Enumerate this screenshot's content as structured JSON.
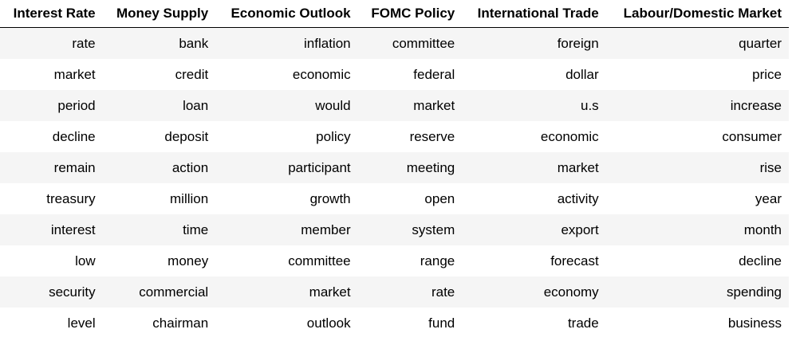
{
  "table": {
    "columns": [
      "Interest Rate",
      "Money Supply",
      "Economic Outlook",
      "FOMC Policy",
      "International Trade",
      "Labour/Domestic Market"
    ],
    "rows": [
      [
        "rate",
        "bank",
        "inflation",
        "committee",
        "foreign",
        "quarter"
      ],
      [
        "market",
        "credit",
        "economic",
        "federal",
        "dollar",
        "price"
      ],
      [
        "period",
        "loan",
        "would",
        "market",
        "u.s",
        "increase"
      ],
      [
        "decline",
        "deposit",
        "policy",
        "reserve",
        "economic",
        "consumer"
      ],
      [
        "remain",
        "action",
        "participant",
        "meeting",
        "market",
        "rise"
      ],
      [
        "treasury",
        "million",
        "growth",
        "open",
        "activity",
        "year"
      ],
      [
        "interest",
        "time",
        "member",
        "system",
        "export",
        "month"
      ],
      [
        "low",
        "money",
        "committee",
        "range",
        "forecast",
        "decline"
      ],
      [
        "security",
        "commercial",
        "market",
        "rate",
        "economy",
        "spending"
      ],
      [
        "level",
        "chairman",
        "outlook",
        "fund",
        "trade",
        "business"
      ]
    ]
  }
}
